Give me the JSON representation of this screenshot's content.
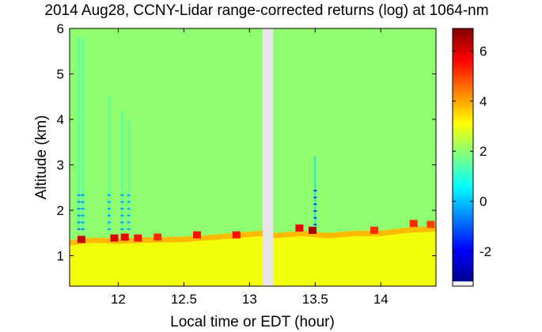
{
  "chart_data": {
    "type": "heatmap",
    "title": "2014 Aug28, CCNY-Lidar range-corrected returns (log) at 1064-nm",
    "xlabel": "Local time or EDT (hour)",
    "ylabel": "Altitude (km)",
    "xlim": [
      11.63,
      14.42
    ],
    "ylim": [
      0.33,
      6.0
    ],
    "x_ticks": [
      12,
      12.5,
      13,
      13.5,
      14
    ],
    "x_tick_labels": [
      "12",
      "12.5",
      "13",
      "13.5",
      "14"
    ],
    "y_ticks": [
      1,
      2,
      3,
      4,
      5,
      6
    ],
    "y_tick_labels": [
      "1",
      "2",
      "3",
      "4",
      "5",
      "6"
    ],
    "colorbar": {
      "colormap": "jet",
      "clim": [
        -3.2,
        6.9
      ],
      "ticks": [
        -2,
        0,
        2,
        4,
        6
      ],
      "tick_labels": [
        "-2",
        "0",
        "2",
        "4",
        "6"
      ]
    },
    "background_value": 2.0,
    "data_gap": {
      "x_start": 13.1,
      "x_end": 13.18,
      "color": "#e6e6e6"
    },
    "boundary_layer": {
      "description_values": "aerosol layer below ~1.5 km with values ~3, strong returns ~6 near layer top",
      "layer_value": 3.0,
      "top_km": [
        {
          "x": 11.65,
          "y": 1.35
        },
        {
          "x": 11.8,
          "y": 1.4
        },
        {
          "x": 12.0,
          "y": 1.38
        },
        {
          "x": 12.2,
          "y": 1.4
        },
        {
          "x": 12.5,
          "y": 1.42
        },
        {
          "x": 12.8,
          "y": 1.48
        },
        {
          "x": 13.08,
          "y": 1.55
        },
        {
          "x": 13.2,
          "y": 1.5
        },
        {
          "x": 13.4,
          "y": 1.55
        },
        {
          "x": 13.6,
          "y": 1.5
        },
        {
          "x": 13.8,
          "y": 1.55
        },
        {
          "x": 14.0,
          "y": 1.55
        },
        {
          "x": 14.2,
          "y": 1.62
        },
        {
          "x": 14.42,
          "y": 1.65
        }
      ]
    },
    "strong_returns": [
      {
        "x": 11.72,
        "y": 1.35,
        "value": 6.2
      },
      {
        "x": 11.97,
        "y": 1.38,
        "value": 6.0
      },
      {
        "x": 12.05,
        "y": 1.4,
        "value": 5.8
      },
      {
        "x": 12.15,
        "y": 1.38,
        "value": 5.5
      },
      {
        "x": 12.3,
        "y": 1.4,
        "value": 5.2
      },
      {
        "x": 12.6,
        "y": 1.45,
        "value": 5.5
      },
      {
        "x": 12.9,
        "y": 1.45,
        "value": 5.5
      },
      {
        "x": 13.48,
        "y": 1.55,
        "value": 6.5
      },
      {
        "x": 13.38,
        "y": 1.6,
        "value": 5.8
      },
      {
        "x": 13.95,
        "y": 1.55,
        "value": 5.2
      },
      {
        "x": 14.25,
        "y": 1.7,
        "value": 5.2
      },
      {
        "x": 14.38,
        "y": 1.68,
        "value": 5.0
      }
    ],
    "low_value_streaks": [
      {
        "x": 11.7,
        "y_range": [
          1.6,
          5.8
        ],
        "value": 1.0
      },
      {
        "x": 11.73,
        "y_range": [
          1.6,
          5.8
        ],
        "value": 1.1
      },
      {
        "x": 11.93,
        "y_range": [
          1.6,
          4.5
        ],
        "value": 1.2
      },
      {
        "x": 12.03,
        "y_range": [
          1.6,
          4.2
        ],
        "value": 1.1
      },
      {
        "x": 12.08,
        "y_range": [
          1.6,
          4.0
        ],
        "value": 1.3
      },
      {
        "x": 13.5,
        "y_range": [
          1.7,
          3.2
        ],
        "value": 0.2
      }
    ]
  }
}
